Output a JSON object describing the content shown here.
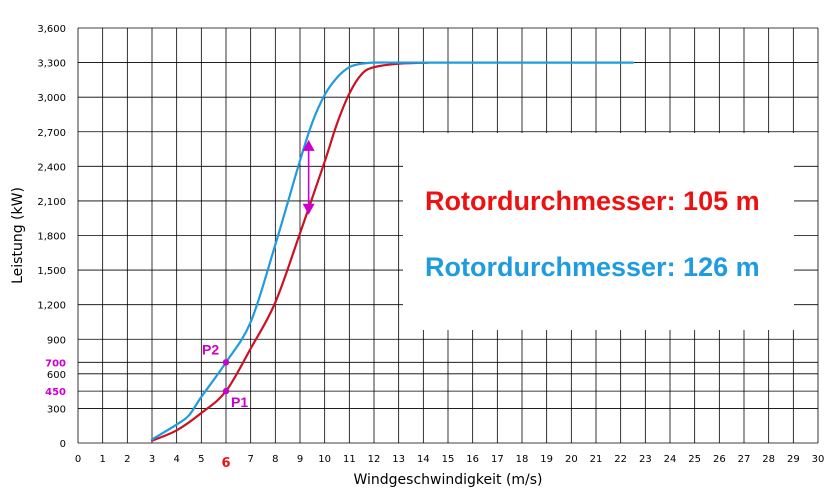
{
  "chart_data": {
    "type": "line",
    "xlabel": "Windgeschwindigkeit (m/s)",
    "ylabel": "Leistung (kW)",
    "xlim": [
      0,
      30
    ],
    "ylim": [
      0,
      3600
    ],
    "x_ticks": [
      0,
      1,
      2,
      3,
      4,
      5,
      6,
      7,
      8,
      9,
      10,
      11,
      12,
      13,
      14,
      15,
      16,
      17,
      18,
      19,
      20,
      21,
      22,
      23,
      24,
      25,
      26,
      27,
      28,
      29,
      30
    ],
    "y_ticks": [
      0,
      300,
      600,
      900,
      1200,
      1500,
      1800,
      2100,
      2400,
      2700,
      3000,
      3300,
      3600
    ],
    "y_tick_labels": [
      "0",
      "300",
      "600",
      "900",
      "1,200",
      "1,500",
      "1,800",
      "2,100",
      "2,400",
      "2,700",
      "3,000",
      "3,300",
      "3,600"
    ],
    "highlight_x_tick": {
      "value": 6,
      "label": "6",
      "color": "#ee1111"
    },
    "highlight_y_ticks": [
      {
        "value": 450,
        "label": "450",
        "color": "#cc00cc"
      },
      {
        "value": 700,
        "label": "700",
        "color": "#cc00cc"
      }
    ],
    "grid": true,
    "series": [
      {
        "name": "Rotordurchmesser: 105 m",
        "color": "#cc1122",
        "x": [
          3,
          4,
          5,
          6,
          7,
          8,
          9,
          10,
          10.5,
          11,
          11.5,
          12,
          13,
          14.2
        ],
        "y": [
          20,
          110,
          260,
          450,
          820,
          1220,
          1820,
          2440,
          2770,
          3030,
          3200,
          3260,
          3290,
          3300
        ]
      },
      {
        "name": "Rotordurchmesser: 126 m",
        "color": "#1f9be0",
        "x": [
          3,
          4,
          4.5,
          5,
          6,
          7,
          8,
          9,
          9.5,
          10,
          10.5,
          11,
          11.5,
          12,
          13,
          14,
          16,
          18,
          20,
          22.5
        ],
        "y": [
          30,
          160,
          240,
          400,
          700,
          1050,
          1720,
          2450,
          2780,
          3020,
          3170,
          3260,
          3290,
          3300,
          3300,
          3300,
          3300,
          3300,
          3300,
          3300
        ]
      }
    ],
    "points": [
      {
        "label": "P1",
        "x": 6,
        "y": 450,
        "color": "#cc00cc"
      },
      {
        "label": "P2",
        "x": 6,
        "y": 700,
        "color": "#cc00cc"
      }
    ],
    "arrow": {
      "x": 9.35,
      "y_from": 1980,
      "y_to": 2630,
      "color": "#cc00cc"
    },
    "legend": {
      "placement": "right",
      "entries": [
        {
          "text": "Rotordurchmesser: 105 m",
          "color": "#ee1111"
        },
        {
          "text": "Rotordurchmesser: 126 m",
          "color": "#1f9be0"
        }
      ]
    }
  }
}
